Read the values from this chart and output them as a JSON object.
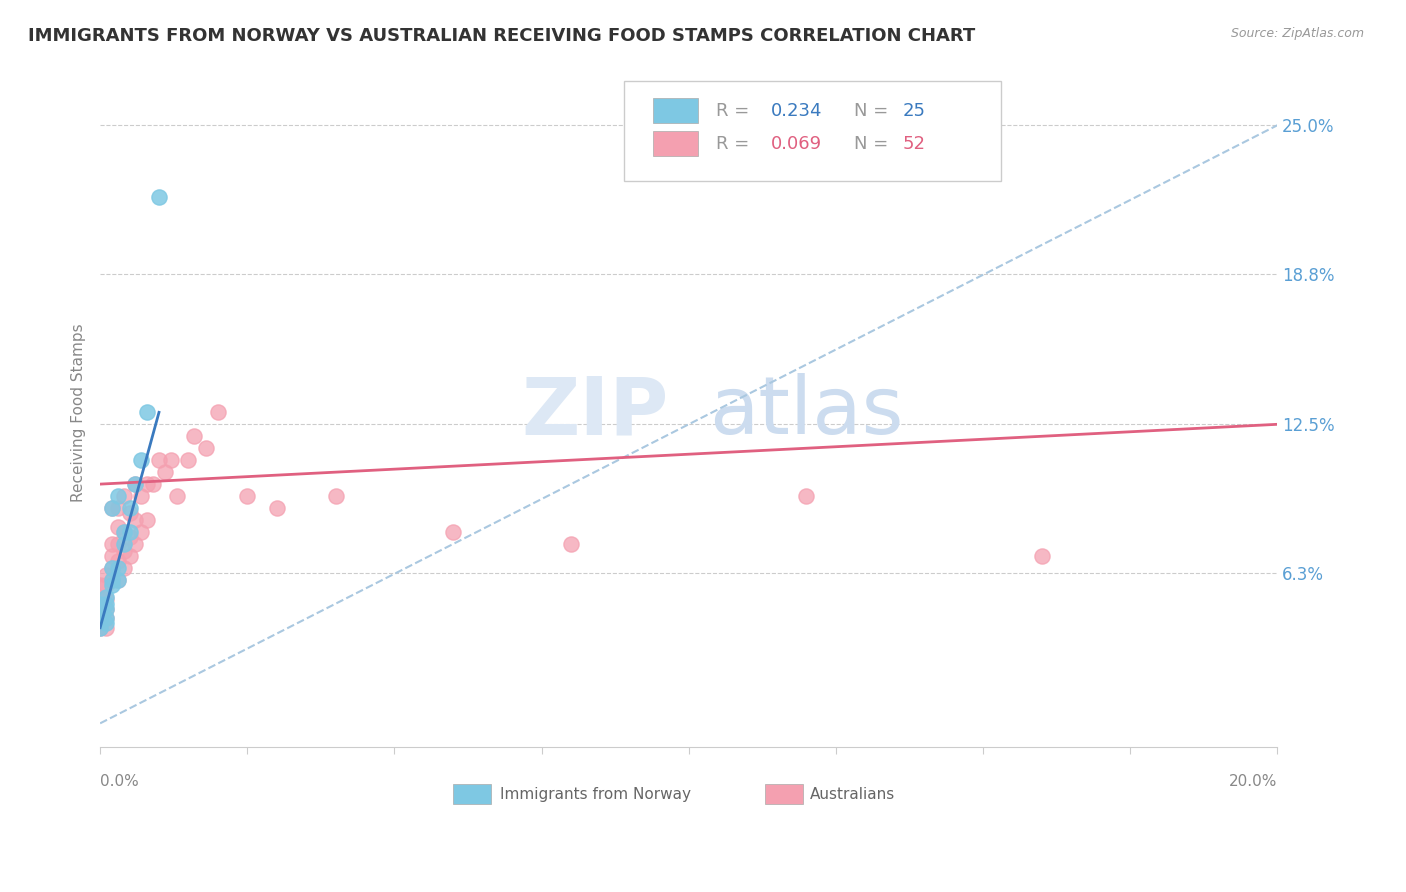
{
  "title": "IMMIGRANTS FROM NORWAY VS AUSTRALIAN RECEIVING FOOD STAMPS CORRELATION CHART",
  "source": "Source: ZipAtlas.com",
  "ylabel": "Receiving Food Stamps",
  "xlim": [
    0.0,
    0.2
  ],
  "ylim": [
    -0.01,
    0.27
  ],
  "yticks": [
    0.063,
    0.125,
    0.188,
    0.25
  ],
  "ytick_labels": [
    "6.3%",
    "12.5%",
    "18.8%",
    "25.0%"
  ],
  "norway_color": "#7ec8e3",
  "australia_color": "#f4a0b0",
  "trend_line_norway_color": "#3a7abf",
  "trend_line_australia_color": "#e06080",
  "trend_dashed_color": "#aac8e0",
  "ytick_color": "#5a9fd4",
  "legend_norway_R": "0.234",
  "legend_norway_N": "25",
  "legend_australia_R": "0.069",
  "legend_australia_N": "52",
  "norway_scatter_x": [
    0.0,
    0.0,
    0.0,
    0.0,
    0.0,
    0.001,
    0.001,
    0.001,
    0.001,
    0.001,
    0.002,
    0.002,
    0.002,
    0.002,
    0.003,
    0.003,
    0.003,
    0.004,
    0.004,
    0.005,
    0.005,
    0.006,
    0.007,
    0.008,
    0.01
  ],
  "norway_scatter_y": [
    0.04,
    0.043,
    0.045,
    0.048,
    0.05,
    0.042,
    0.044,
    0.048,
    0.05,
    0.053,
    0.058,
    0.06,
    0.065,
    0.09,
    0.06,
    0.065,
    0.095,
    0.075,
    0.08,
    0.08,
    0.09,
    0.1,
    0.11,
    0.13,
    0.22
  ],
  "australia_scatter_x": [
    0.0,
    0.0,
    0.0,
    0.0,
    0.0,
    0.0,
    0.001,
    0.001,
    0.001,
    0.001,
    0.001,
    0.001,
    0.002,
    0.002,
    0.002,
    0.002,
    0.002,
    0.003,
    0.003,
    0.003,
    0.003,
    0.003,
    0.004,
    0.004,
    0.004,
    0.004,
    0.005,
    0.005,
    0.005,
    0.006,
    0.006,
    0.006,
    0.007,
    0.007,
    0.008,
    0.008,
    0.009,
    0.01,
    0.011,
    0.012,
    0.013,
    0.015,
    0.016,
    0.018,
    0.02,
    0.025,
    0.03,
    0.04,
    0.06,
    0.08,
    0.12,
    0.16
  ],
  "australia_scatter_y": [
    0.04,
    0.043,
    0.046,
    0.049,
    0.052,
    0.058,
    0.04,
    0.044,
    0.048,
    0.052,
    0.058,
    0.062,
    0.06,
    0.065,
    0.07,
    0.075,
    0.09,
    0.06,
    0.068,
    0.075,
    0.082,
    0.09,
    0.065,
    0.072,
    0.08,
    0.095,
    0.07,
    0.078,
    0.088,
    0.075,
    0.085,
    0.1,
    0.08,
    0.095,
    0.085,
    0.1,
    0.1,
    0.11,
    0.105,
    0.11,
    0.095,
    0.11,
    0.12,
    0.115,
    0.13,
    0.095,
    0.09,
    0.095,
    0.08,
    0.075,
    0.095,
    0.07
  ],
  "norway_trend_x": [
    0.0,
    0.01
  ],
  "norway_trend_y": [
    0.04,
    0.13
  ],
  "australia_trend_x": [
    0.0,
    0.2
  ],
  "australia_trend_y": [
    0.1,
    0.125
  ],
  "dashed_trend_x": [
    0.0,
    0.2
  ],
  "dashed_trend_y": [
    0.0,
    0.25
  ]
}
